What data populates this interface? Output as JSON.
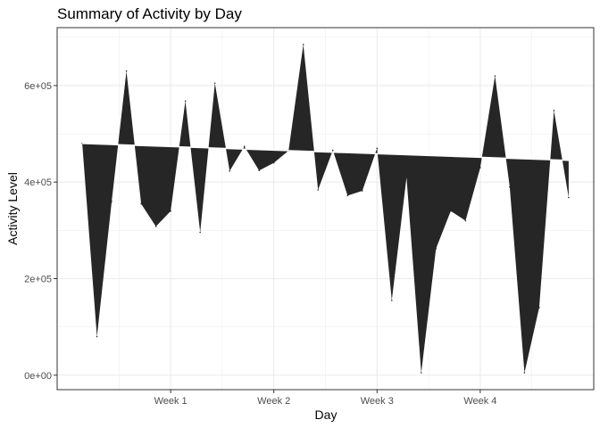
{
  "chart_data": {
    "type": "area",
    "title": "Summary of Activity by Day",
    "xlabel": "Day",
    "ylabel": "Activity Level",
    "x_ticks": [
      {
        "label": "Week 1",
        "day": 7
      },
      {
        "label": "Week 2",
        "day": 14
      },
      {
        "label": "Week 3",
        "day": 21
      },
      {
        "label": "Week 4",
        "day": 28
      }
    ],
    "y_ticks": [
      {
        "label": "0e+00",
        "value": 0
      },
      {
        "label": "2e+05",
        "value": 200000
      },
      {
        "label": "4e+05",
        "value": 400000
      },
      {
        "label": "6e+05",
        "value": 600000
      }
    ],
    "xlim": [
      -0.7,
      35.7
    ],
    "ylim": [
      -30000,
      720000
    ],
    "grid": true,
    "legend": "none",
    "series": [
      {
        "role": "daily activity",
        "x": [
          1,
          2,
          3,
          4,
          5,
          6,
          7,
          8,
          9,
          10,
          11,
          12,
          13,
          14,
          15,
          16,
          17,
          18,
          19,
          20,
          21,
          22,
          23,
          24,
          25,
          26,
          27,
          28,
          29,
          30,
          31,
          32,
          33,
          34
        ],
        "values": [
          480000,
          80000,
          360000,
          630000,
          355000,
          308000,
          340000,
          568000,
          296000,
          605000,
          423000,
          474000,
          424000,
          440000,
          465000,
          685000,
          384000,
          466000,
          372000,
          382000,
          470000,
          155000,
          410000,
          5000,
          262000,
          340000,
          320000,
          430000,
          620000,
          390000,
          5000,
          140000,
          548000,
          368000
        ]
      },
      {
        "role": "trend",
        "x": [
          1,
          34
        ],
        "values": [
          480000,
          445000
        ]
      }
    ],
    "fill_color": "#262626",
    "grid_color": "#ebebeb",
    "border_color": "#333333"
  }
}
